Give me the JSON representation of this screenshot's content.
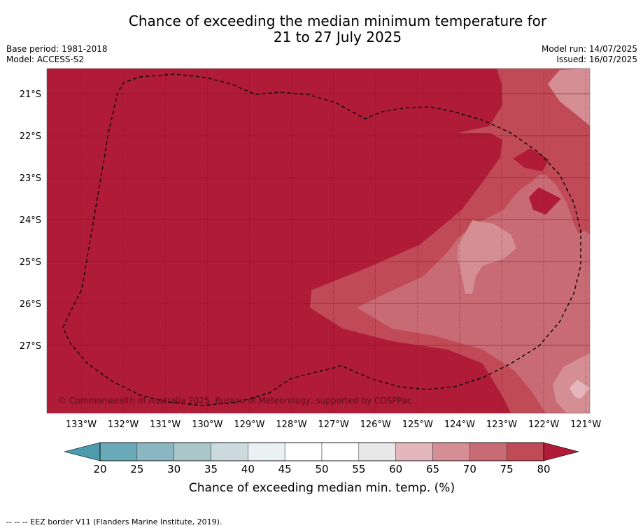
{
  "header": {
    "title_line1": "Chance of exceeding the median minimum temperature for",
    "title_line2": "21 to 27 July 2025",
    "base_period": "Base period: 1981-2018",
    "model": "Model: ACCESS-S2",
    "model_run": "Model run: 14/07/2025",
    "issued": "Issued: 16/07/2025"
  },
  "map": {
    "lon_ticks": [
      "133°W",
      "132°W",
      "131°W",
      "130°W",
      "129°W",
      "128°W",
      "127°W",
      "126°W",
      "125°W",
      "124°W",
      "123°W",
      "122°W",
      "121°W"
    ],
    "lat_ticks": [
      "21°S",
      "22°S",
      "23°S",
      "24°S",
      "25°S",
      "26°S",
      "27°S"
    ],
    "copyright": "© Commonwealth of Australia 2025, Bureau of Meteorology, supported by COSPPac",
    "dominant_category": "80+",
    "colors": {
      "c80plus": "#b01c38",
      "c75_80": "#c04a55",
      "c70_75": "#c96b75",
      "c65_70": "#d68e95",
      "c60_65": "#e3b7bb",
      "c55_60": "#e8e8e8"
    }
  },
  "colorbar": {
    "ticks": [
      "20",
      "25",
      "30",
      "35",
      "40",
      "45",
      "50",
      "55",
      "60",
      "65",
      "70",
      "75",
      "80"
    ],
    "colors": [
      "#6aaab8",
      "#8ab7c2",
      "#a9c6cc",
      "#cadadd",
      "#eaf1f3",
      "#ffffff",
      "#ffffff",
      "#e8e8e8",
      "#e3b7bb",
      "#d68e95",
      "#c96b75",
      "#c04a55"
    ],
    "low_extend_color": "#4c9cad",
    "high_extend_color": "#b01c38",
    "label": "Chance of exceeding median min. temp. (%)"
  },
  "footer": {
    "eez_note": "--  --  -- EEZ border V11 (Flanders Marine Institute, 2019)."
  }
}
